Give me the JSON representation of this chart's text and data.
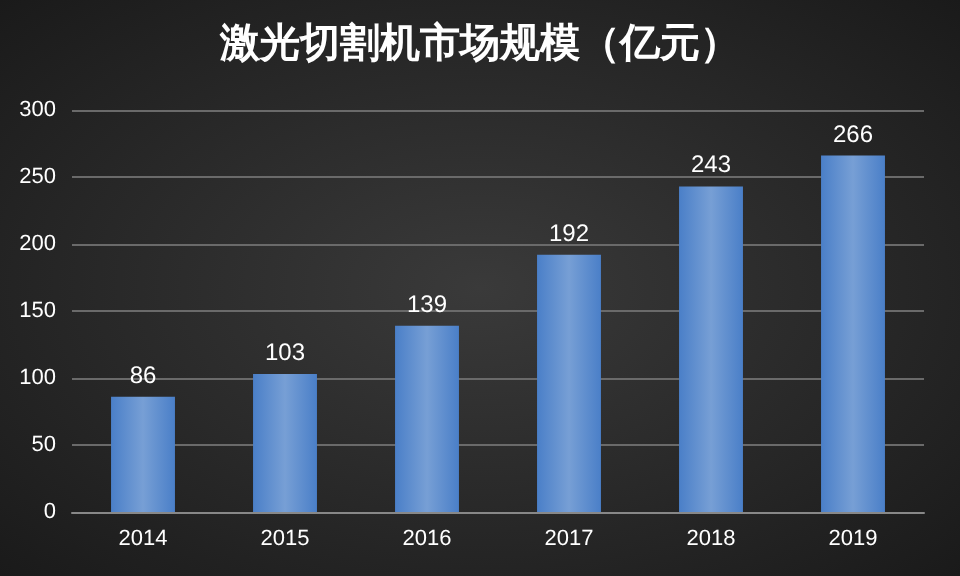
{
  "chart_data": {
    "type": "bar",
    "title": "激光切割机市场规模（亿元）",
    "categories": [
      "2014",
      "2015",
      "2016",
      "2017",
      "2018",
      "2019"
    ],
    "values": [
      86,
      103,
      139,
      192,
      243,
      266
    ],
    "color": "#4a7fc8",
    "ylim": [
      0,
      300
    ],
    "yticks": [
      0,
      50,
      100,
      150,
      200,
      250,
      300
    ],
    "grid": "y",
    "data_labels": true
  }
}
